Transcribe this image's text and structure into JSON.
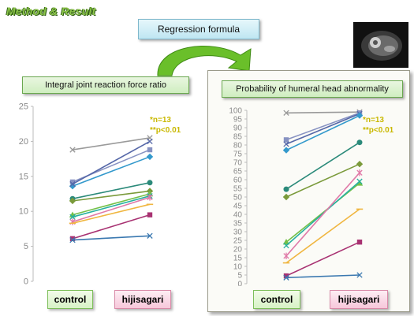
{
  "heading": "Method & Result",
  "formula_label": "Regression formula",
  "colors": {
    "heading": "#8bc34a",
    "annotation": "#c9b800",
    "arrow": "#6abf2a",
    "series": [
      "#9a9a9a",
      "#8792c2",
      "#3399cc",
      "#2b8a7a",
      "#7a9a3a",
      "#74c048",
      "#26b0a0",
      "#e07aa8",
      "#a83272",
      "#f0b640",
      "#3a78b0"
    ]
  },
  "charts": [
    {
      "title": "Integral joint reaction force ratio",
      "annotation_lines": [
        "*n=13",
        "**p<0.01"
      ],
      "x_labels": [
        "control",
        "hijisagari"
      ]
    },
    {
      "title": "Probability of humeral head abnormality",
      "annotation_lines": [
        "*n=13",
        "**p<0.01"
      ],
      "x_labels": [
        "control",
        "hijisagari"
      ]
    }
  ],
  "chart_data": [
    {
      "type": "line",
      "title": "Integral joint reaction force ratio",
      "categories": [
        "control",
        "hijisagari"
      ],
      "ylim": [
        0,
        25
      ],
      "yticks": [
        0,
        5,
        10,
        15,
        20,
        25
      ],
      "grid": false,
      "series": [
        {
          "values": [
            18.8,
            20.5
          ],
          "marker": "x",
          "color": "#9a9a9a"
        },
        {
          "values": [
            14.2,
            18.8
          ],
          "marker": "square",
          "color": "#8792c2"
        },
        {
          "values": [
            13.6,
            17.8
          ],
          "marker": "diamond",
          "color": "#3399cc"
        },
        {
          "values": [
            13.9,
            20.0
          ],
          "marker": "x",
          "color": "#5567a8"
        },
        {
          "values": [
            11.8,
            14.1
          ],
          "marker": "circle",
          "color": "#2b8a7a"
        },
        {
          "values": [
            11.5,
            12.9
          ],
          "marker": "diamond",
          "color": "#7a9a3a"
        },
        {
          "values": [
            9.5,
            12.5
          ],
          "marker": "triangle",
          "color": "#74c048"
        },
        {
          "values": [
            9.2,
            12.2
          ],
          "marker": "x",
          "color": "#26b0a0"
        },
        {
          "values": [
            8.5,
            12.0
          ],
          "marker": "star",
          "color": "#e07aa8"
        },
        {
          "values": [
            8.3,
            11.0
          ],
          "marker": "dash",
          "color": "#f0b640"
        },
        {
          "values": [
            6.1,
            9.5
          ],
          "marker": "square",
          "color": "#a83272"
        },
        {
          "values": [
            5.9,
            6.5
          ],
          "marker": "x",
          "color": "#3a78b0"
        }
      ]
    },
    {
      "type": "line",
      "title": "Probability of humeral head abnormality",
      "categories": [
        "control",
        "hijisagari"
      ],
      "ylim": [
        0,
        100
      ],
      "yticks": [
        0,
        5,
        10,
        15,
        20,
        25,
        30,
        35,
        40,
        45,
        50,
        55,
        60,
        65,
        70,
        75,
        80,
        85,
        90,
        95,
        100
      ],
      "grid": false,
      "series": [
        {
          "values": [
            98.5,
            99.0
          ],
          "marker": "x",
          "color": "#9a9a9a"
        },
        {
          "values": [
            83.0,
            98.5
          ],
          "marker": "square",
          "color": "#8792c2"
        },
        {
          "values": [
            80.5,
            98.0
          ],
          "marker": "x",
          "color": "#5567a8"
        },
        {
          "values": [
            77.0,
            97.0
          ],
          "marker": "diamond",
          "color": "#3399cc"
        },
        {
          "values": [
            54.5,
            81.5
          ],
          "marker": "circle",
          "color": "#2b8a7a"
        },
        {
          "values": [
            50.0,
            69.0
          ],
          "marker": "diamond",
          "color": "#7a9a3a"
        },
        {
          "values": [
            24.0,
            58.0
          ],
          "marker": "triangle",
          "color": "#74c048"
        },
        {
          "values": [
            22.0,
            59.0
          ],
          "marker": "x",
          "color": "#26b0a0"
        },
        {
          "values": [
            16.0,
            64.0
          ],
          "marker": "star",
          "color": "#e07aa8"
        },
        {
          "values": [
            12.0,
            43.0
          ],
          "marker": "dash",
          "color": "#f0b640"
        },
        {
          "values": [
            4.5,
            24.0
          ],
          "marker": "square",
          "color": "#a83272"
        },
        {
          "values": [
            3.5,
            5.0
          ],
          "marker": "x",
          "color": "#3a78b0"
        }
      ]
    }
  ]
}
